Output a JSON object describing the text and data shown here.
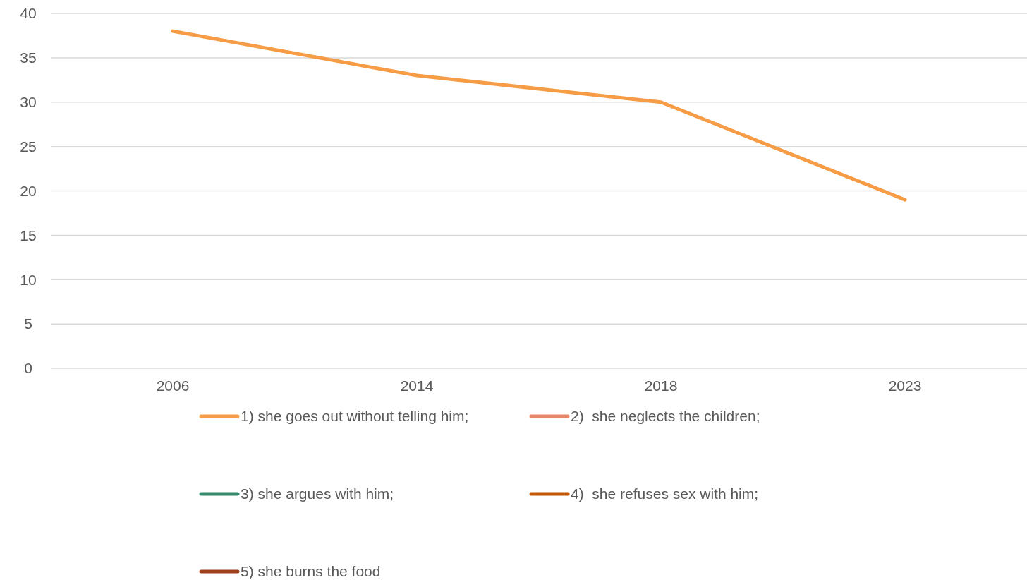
{
  "chart_data": {
    "type": "line",
    "categories": [
      "2006",
      "2014",
      "2018",
      "2023"
    ],
    "series": [
      {
        "name": "1) she goes out without telling him;",
        "color": "#f79c46",
        "values": [
          38,
          33,
          30,
          19
        ]
      },
      {
        "name": "2)  she neglects the children;",
        "color": "#e8866a",
        "values": [
          null,
          null,
          null,
          null
        ]
      },
      {
        "name": "3) she argues with him;",
        "color": "#3a8a6e",
        "values": [
          null,
          null,
          null,
          null
        ]
      },
      {
        "name": "4)  she refuses sex with him;",
        "color": "#c05a0a",
        "values": [
          null,
          null,
          null,
          null
        ]
      },
      {
        "name": "5) she burns the food",
        "color": "#a0401a",
        "values": [
          null,
          null,
          null,
          null
        ]
      }
    ],
    "ylim": [
      0,
      40
    ],
    "yticks": [
      0,
      5,
      10,
      15,
      20,
      25,
      30,
      35,
      40
    ],
    "grid": "y",
    "legend": "bottom",
    "marker": "none",
    "line_style": "solid"
  }
}
